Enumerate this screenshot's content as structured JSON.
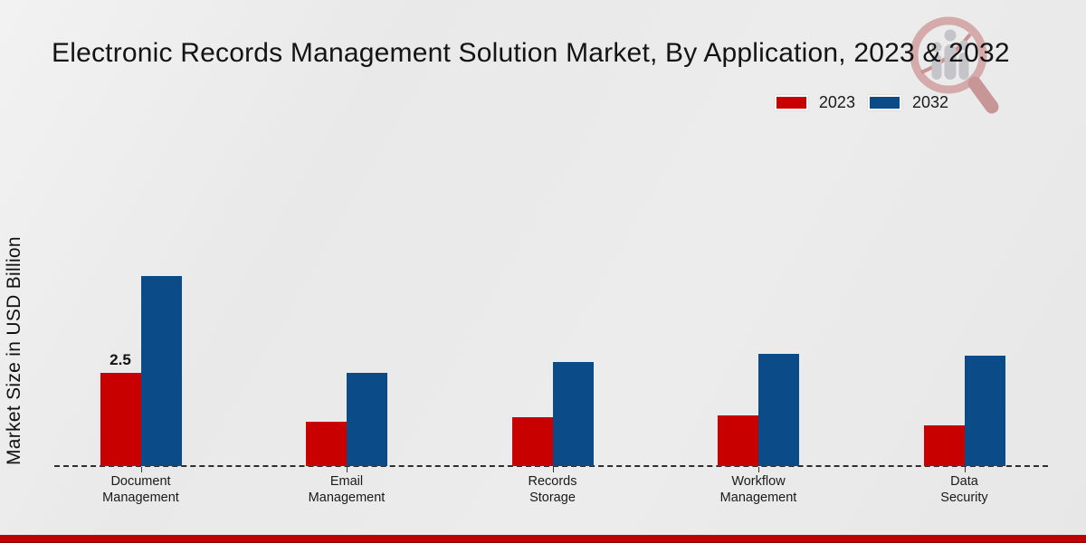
{
  "title": "Electronic Records Management Solution Market, By Application, 2023 & 2032",
  "ylabel": "Market Size in USD Billion",
  "legend": {
    "items": [
      {
        "label": "2023",
        "color": "#c80000"
      },
      {
        "label": "2032",
        "color": "#0b4b88"
      }
    ]
  },
  "chart_data": {
    "type": "bar",
    "title": "Electronic Records Management Solution Market, By Application, 2023 & 2032",
    "xlabel": "",
    "ylabel": "Market Size in USD Billion",
    "categories": [
      "Document\nManagement",
      "Email\nManagement",
      "Records\nStorage",
      "Workflow\nManagement",
      "Data\nSecurity"
    ],
    "series": [
      {
        "name": "2023",
        "color": "#c80000",
        "values": [
          2.5,
          1.2,
          1.3,
          1.35,
          1.1
        ]
      },
      {
        "name": "2032",
        "color": "#0b4b88",
        "values": [
          5.1,
          2.5,
          2.8,
          3.0,
          2.95
        ]
      }
    ],
    "data_labels": [
      {
        "series_index": 0,
        "category_index": 0,
        "text": "2.5"
      }
    ],
    "baseline_style": "dashed",
    "grid": false,
    "legend_position": "top-right",
    "ylim": [
      0,
      5.5
    ]
  },
  "footer": {
    "color": "#c00000"
  },
  "watermark": {
    "name": "market-research-magnifier-logo"
  }
}
